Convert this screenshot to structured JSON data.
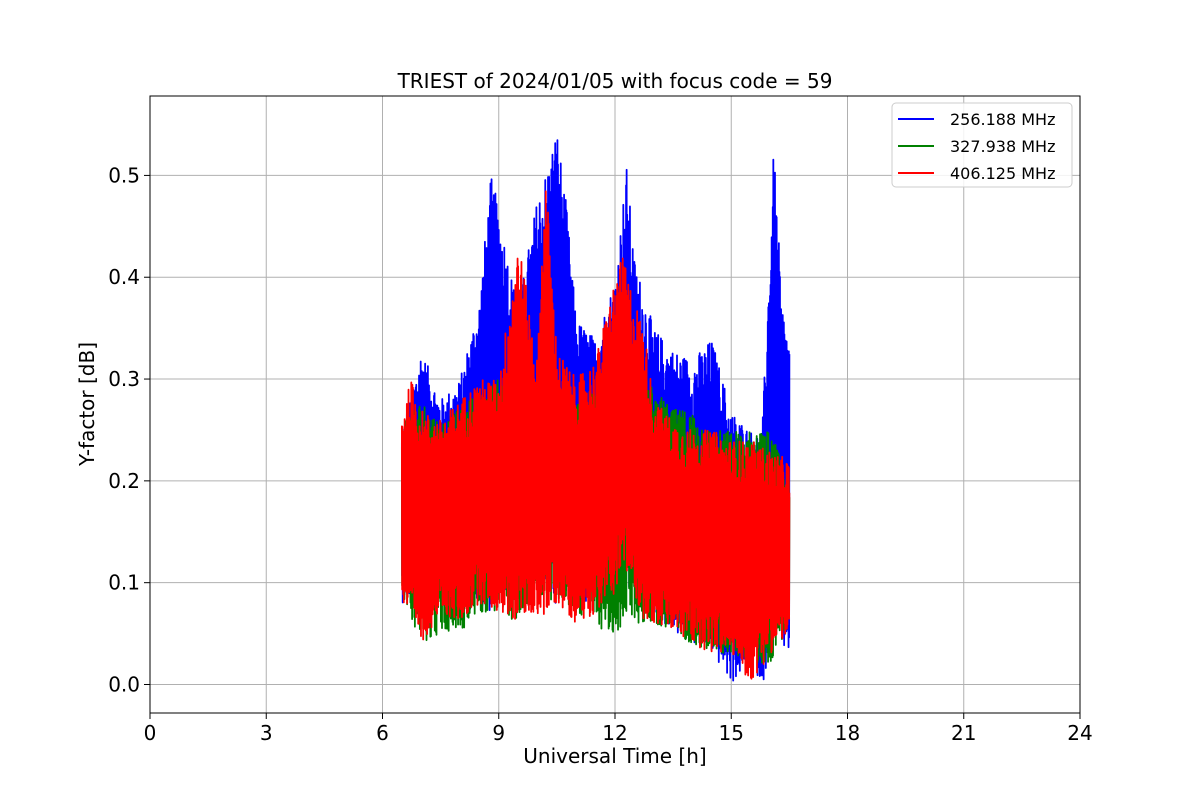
{
  "chart_data": {
    "type": "line",
    "title": "TRIEST of 2024/01/05 with focus code = 59",
    "xlabel": "Universal Time [h]",
    "ylabel": "Y-factor [dB]",
    "xlim": [
      0,
      24
    ],
    "ylim": [
      -0.028,
      0.578
    ],
    "xticks": [
      0,
      3,
      6,
      9,
      12,
      15,
      18,
      21,
      24
    ],
    "yticks": [
      0.0,
      0.1,
      0.2,
      0.3,
      0.4,
      0.5
    ],
    "ytick_labels": [
      "0.0",
      "0.1",
      "0.2",
      "0.3",
      "0.4",
      "0.5"
    ],
    "grid": true,
    "legend_position": "top-right",
    "series": [
      {
        "name": "256.188 MHz",
        "color": "#0000ff",
        "x": [
          6.5,
          7.0,
          7.5,
          8.0,
          8.5,
          8.8,
          9.0,
          9.5,
          10.0,
          10.25,
          10.5,
          10.75,
          11.0,
          11.5,
          12.0,
          12.3,
          12.5,
          13.0,
          13.5,
          14.0,
          14.5,
          15.0,
          15.5,
          15.8,
          16.1,
          16.3,
          16.5
        ],
        "y_upper": [
          0.25,
          0.33,
          0.28,
          0.3,
          0.38,
          0.5,
          0.47,
          0.37,
          0.48,
          0.51,
          0.55,
          0.47,
          0.36,
          0.34,
          0.4,
          0.51,
          0.42,
          0.35,
          0.33,
          0.32,
          0.34,
          0.27,
          0.25,
          0.25,
          0.53,
          0.38,
          0.34
        ],
        "y_lower": [
          0.08,
          0.09,
          0.09,
          0.07,
          0.08,
          0.07,
          0.09,
          0.08,
          0.1,
          0.08,
          0.08,
          0.09,
          0.07,
          0.09,
          0.1,
          0.09,
          0.08,
          0.07,
          0.05,
          0.04,
          0.03,
          0.0,
          0.02,
          0.0,
          0.04,
          0.03,
          0.03
        ]
      },
      {
        "name": "327.938 MHz",
        "color": "#008000",
        "x": [
          6.5,
          7.0,
          7.5,
          8.0,
          8.5,
          9.0,
          9.5,
          10.0,
          10.5,
          11.0,
          11.5,
          12.0,
          12.3,
          12.5,
          13.0,
          13.5,
          14.0,
          14.5,
          15.0,
          15.5,
          16.0,
          16.5
        ],
        "y_upper": [
          0.26,
          0.28,
          0.26,
          0.27,
          0.29,
          0.3,
          0.29,
          0.31,
          0.3,
          0.28,
          0.29,
          0.33,
          0.34,
          0.32,
          0.29,
          0.27,
          0.27,
          0.25,
          0.25,
          0.25,
          0.25,
          0.2
        ],
        "y_lower": [
          0.09,
          0.04,
          0.05,
          0.05,
          0.07,
          0.07,
          0.06,
          0.09,
          0.08,
          0.07,
          0.06,
          0.04,
          0.07,
          0.06,
          0.06,
          0.05,
          0.04,
          0.03,
          0.03,
          0.02,
          0.02,
          0.06
        ]
      },
      {
        "name": "406.125 MHz",
        "color": "#ff0000",
        "x": [
          6.5,
          6.75,
          7.0,
          7.5,
          8.0,
          8.5,
          9.0,
          9.5,
          10.0,
          10.2,
          10.5,
          11.0,
          11.5,
          12.0,
          12.2,
          12.5,
          12.75,
          13.0,
          13.5,
          14.0,
          14.5,
          15.0,
          15.5,
          16.0,
          16.5
        ],
        "y_upper": [
          0.27,
          0.3,
          0.27,
          0.26,
          0.28,
          0.3,
          0.3,
          0.44,
          0.32,
          0.51,
          0.33,
          0.3,
          0.32,
          0.4,
          0.42,
          0.38,
          0.35,
          0.28,
          0.26,
          0.25,
          0.25,
          0.24,
          0.24,
          0.23,
          0.22
        ],
        "y_lower": [
          0.08,
          0.06,
          0.04,
          0.07,
          0.06,
          0.08,
          0.07,
          0.06,
          0.07,
          0.06,
          0.08,
          0.06,
          0.07,
          0.09,
          0.11,
          0.09,
          0.06,
          0.06,
          0.05,
          0.04,
          0.03,
          0.03,
          0.0,
          0.03,
          0.05
        ]
      }
    ]
  }
}
